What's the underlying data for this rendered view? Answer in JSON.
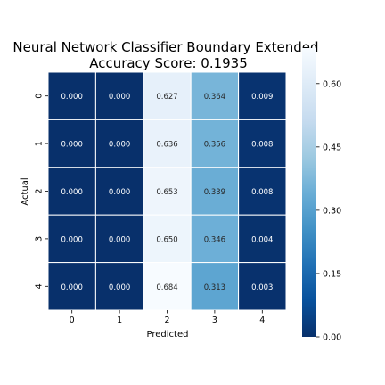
{
  "chart_data": {
    "type": "heatmap",
    "title_line1": "Neural Network Classifier Boundary Extended",
    "title_line2": "Accuracy Score: 0.1935",
    "xlabel": "Predicted",
    "ylabel": "Actual",
    "x_categories": [
      "0",
      "1",
      "2",
      "3",
      "4"
    ],
    "y_categories": [
      "0",
      "1",
      "2",
      "3",
      "4"
    ],
    "values": [
      [
        0.0,
        0.0,
        0.627,
        0.364,
        0.009
      ],
      [
        0.0,
        0.0,
        0.636,
        0.356,
        0.008
      ],
      [
        0.0,
        0.0,
        0.653,
        0.339,
        0.008
      ],
      [
        0.0,
        0.0,
        0.65,
        0.346,
        0.004
      ],
      [
        0.0,
        0.0,
        0.684,
        0.313,
        0.003
      ]
    ],
    "cell_labels": [
      [
        "0.000",
        "0.000",
        "0.627",
        "0.364",
        "0.009"
      ],
      [
        "0.000",
        "0.000",
        "0.636",
        "0.356",
        "0.008"
      ],
      [
        "0.000",
        "0.000",
        "0.653",
        "0.339",
        "0.008"
      ],
      [
        "0.000",
        "0.000",
        "0.650",
        "0.346",
        "0.004"
      ],
      [
        "0.000",
        "0.000",
        "0.684",
        "0.313",
        "0.003"
      ]
    ],
    "colormap": "reversed Blues",
    "colormap_stops": [
      "#08306b",
      "#08519c",
      "#2171b5",
      "#4292c6",
      "#6baed6",
      "#9ecae1",
      "#c6dbef",
      "#deebf7",
      "#f7fbff"
    ],
    "vmin": 0.0,
    "vmax": 0.684,
    "colorbar_ticks": [
      "0.00",
      "0.15",
      "0.30",
      "0.45",
      "0.60"
    ],
    "colorbar_tick_values": [
      0.0,
      0.15,
      0.3,
      0.45,
      0.6
    ],
    "grid_line_color": "#ffffff"
  }
}
